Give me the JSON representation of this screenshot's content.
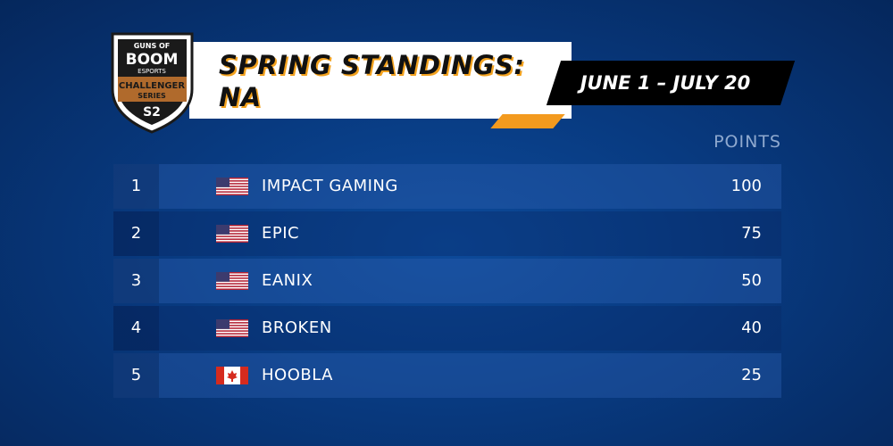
{
  "logo": {
    "line1": "GUNS OF",
    "line2": "BOOM",
    "line3": "ESPORTS",
    "line4": "CHALLENGER",
    "line5": "SERIES",
    "season": "S2"
  },
  "header": {
    "title_line1": "SPRING STANDINGS:",
    "title_line2": "NA",
    "dates": "JUNE 1 – JULY 20"
  },
  "table": {
    "columns": {
      "points": "POINTS"
    },
    "rows": [
      {
        "rank": 1,
        "team": "IMPACT GAMING",
        "points": 100
      },
      {
        "rank": 2,
        "team": "EPIC",
        "points": 75
      },
      {
        "rank": 3,
        "team": "EANIX",
        "points": 50
      },
      {
        "rank": 4,
        "team": "BROKEN",
        "points": 40
      },
      {
        "rank": 5,
        "team": "HOOBLA",
        "points": 25
      }
    ]
  }
}
